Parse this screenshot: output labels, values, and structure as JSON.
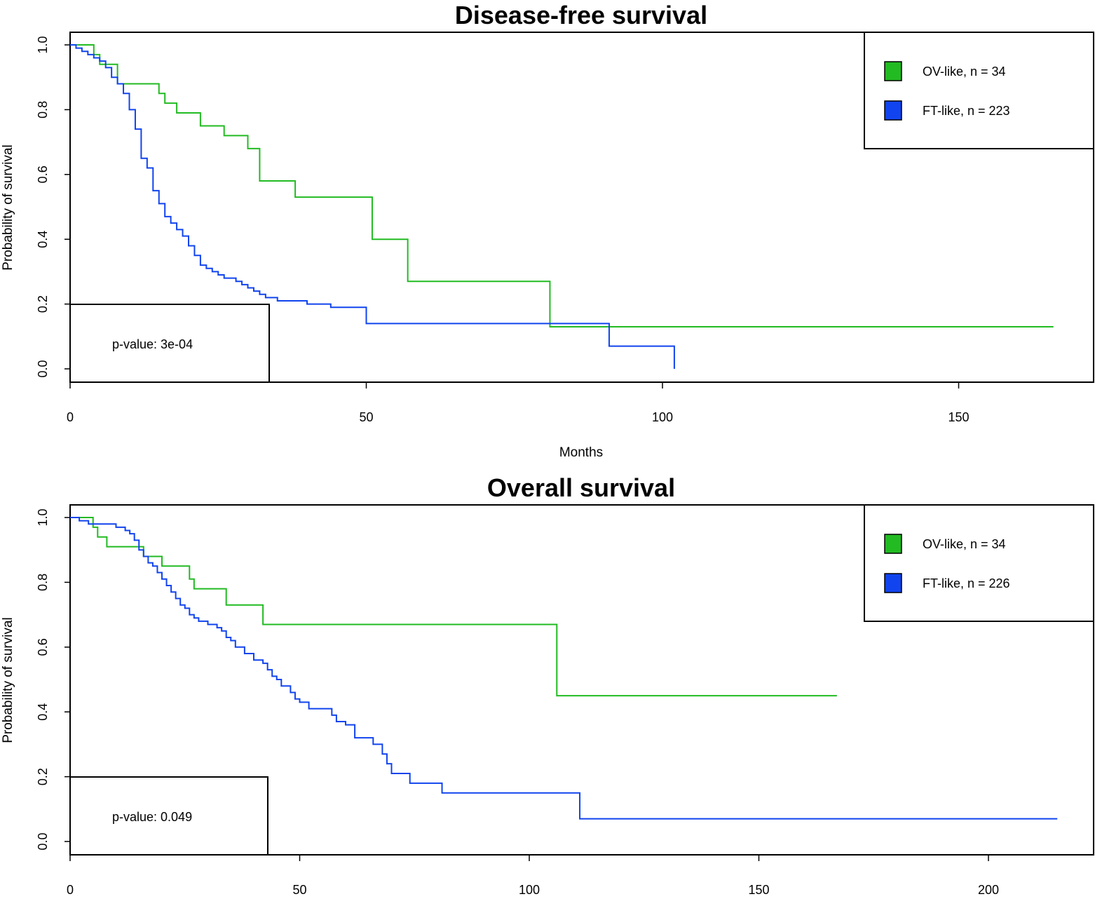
{
  "chart_data": [
    {
      "type": "line",
      "title": "Disease-free survival",
      "xlabel": "Months",
      "ylabel": "Probability of survival",
      "xlim": [
        0,
        170
      ],
      "ylim": [
        0,
        1
      ],
      "x_ticks": [
        0,
        50,
        100,
        150
      ],
      "y_ticks": [
        0.0,
        0.2,
        0.4,
        0.6,
        0.8,
        1.0
      ],
      "x_tick_labels": [
        "0",
        "50",
        "100",
        "150"
      ],
      "y_tick_labels": [
        "0.0",
        "0.2",
        "0.4",
        "0.6",
        "0.8",
        "1.0"
      ],
      "legend_position": "top-right",
      "pvalue_text": "p-value: 3e-04",
      "series": [
        {
          "name": "OV-like, n = 34",
          "color": "#22bb22",
          "x": [
            0,
            4,
            5,
            8,
            11,
            15,
            16,
            18,
            22,
            26,
            29,
            30,
            32,
            33,
            38,
            51,
            57,
            81,
            100,
            166
          ],
          "y": [
            1.0,
            0.97,
            0.94,
            0.88,
            0.88,
            0.85,
            0.82,
            0.79,
            0.75,
            0.72,
            0.72,
            0.68,
            0.58,
            0.58,
            0.53,
            0.4,
            0.27,
            0.13,
            0.13,
            0.13
          ]
        },
        {
          "name": "FT-like, n = 223",
          "color": "#1144ee",
          "x": [
            0,
            1,
            2,
            3,
            4,
            5,
            6,
            7,
            8,
            9,
            10,
            11,
            12,
            13,
            14,
            15,
            16,
            17,
            18,
            19,
            20,
            21,
            22,
            23,
            24,
            25,
            26,
            28,
            29,
            30,
            31,
            32,
            33,
            35,
            37,
            40,
            44,
            50,
            80,
            91,
            102
          ],
          "y": [
            1.0,
            0.99,
            0.98,
            0.97,
            0.96,
            0.95,
            0.93,
            0.9,
            0.88,
            0.85,
            0.8,
            0.74,
            0.65,
            0.62,
            0.55,
            0.51,
            0.47,
            0.45,
            0.43,
            0.41,
            0.38,
            0.35,
            0.32,
            0.31,
            0.3,
            0.29,
            0.28,
            0.27,
            0.26,
            0.25,
            0.24,
            0.23,
            0.22,
            0.21,
            0.21,
            0.2,
            0.19,
            0.14,
            0.14,
            0.07,
            0.0
          ]
        }
      ]
    },
    {
      "type": "line",
      "title": "Overall survival",
      "xlabel": "",
      "ylabel": "Probability of survival",
      "xlim": [
        0,
        215
      ],
      "ylim": [
        0,
        1
      ],
      "x_ticks": [
        0,
        50,
        100,
        150,
        200
      ],
      "y_ticks": [
        0.0,
        0.2,
        0.4,
        0.6,
        0.8,
        1.0
      ],
      "x_tick_labels": [
        "0",
        "50",
        "100",
        "150",
        "200"
      ],
      "y_tick_labels": [
        "0.0",
        "0.2",
        "0.4",
        "0.6",
        "0.8",
        "1.0"
      ],
      "legend_position": "top-right",
      "pvalue_text": "p-value: 0.049",
      "series": [
        {
          "name": "OV-like, n = 34",
          "color": "#22bb22",
          "x": [
            0,
            5,
            6,
            8,
            15,
            16,
            20,
            26,
            27,
            34,
            42,
            106,
            167
          ],
          "y": [
            1.0,
            0.97,
            0.94,
            0.91,
            0.91,
            0.88,
            0.85,
            0.81,
            0.78,
            0.73,
            0.67,
            0.45,
            0.45
          ],
          "end_x": 167
        },
        {
          "name": "FT-like, n = 226",
          "color": "#1144ee",
          "x": [
            0,
            2,
            4,
            8,
            10,
            12,
            13,
            14,
            15,
            16,
            17,
            18,
            19,
            20,
            21,
            22,
            23,
            24,
            25,
            26,
            27,
            28,
            30,
            32,
            33,
            34,
            35,
            36,
            38,
            40,
            42,
            43,
            44,
            45,
            46,
            48,
            49,
            50,
            52,
            57,
            58,
            60,
            62,
            66,
            68,
            69,
            70,
            74,
            81,
            111
          ],
          "y": [
            1.0,
            0.99,
            0.98,
            0.98,
            0.97,
            0.96,
            0.95,
            0.93,
            0.9,
            0.88,
            0.86,
            0.85,
            0.83,
            0.81,
            0.79,
            0.77,
            0.75,
            0.73,
            0.72,
            0.7,
            0.69,
            0.68,
            0.67,
            0.66,
            0.65,
            0.63,
            0.62,
            0.6,
            0.58,
            0.56,
            0.55,
            0.53,
            0.51,
            0.5,
            0.48,
            0.46,
            0.44,
            0.43,
            0.41,
            0.39,
            0.37,
            0.36,
            0.32,
            0.3,
            0.27,
            0.24,
            0.21,
            0.18,
            0.15,
            0.07
          ],
          "end_x": 215
        }
      ]
    }
  ]
}
